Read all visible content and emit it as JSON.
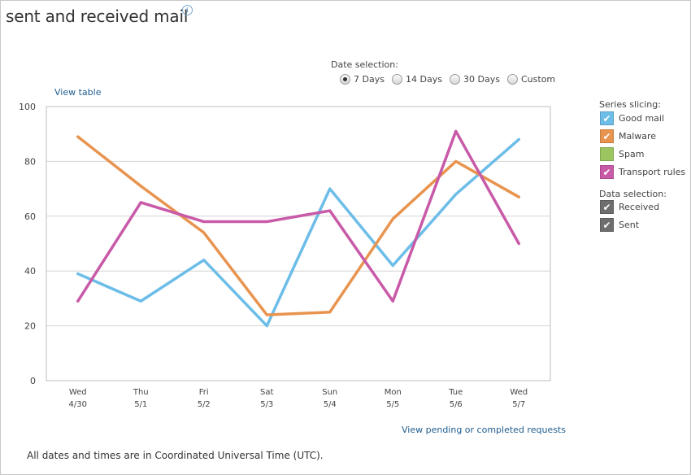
{
  "page": {
    "title": "sent and received mail",
    "info_icon": "info-icon",
    "view_table": "View table",
    "view_pending": "View pending or completed requests",
    "footer": "All dates and times are in Coordinated Universal Time (UTC)."
  },
  "date_selection": {
    "label": "Date selection:",
    "options": [
      "7 Days",
      "14 Days",
      "30 Days",
      "Custom"
    ],
    "selected": "7 Days"
  },
  "legend": {
    "series_label": "Series slicing:",
    "series": [
      {
        "label": "Good mail",
        "color": "#6cbde8",
        "checked": true
      },
      {
        "label": "Malware",
        "color": "#e8944f",
        "checked": true
      },
      {
        "label": "Spam",
        "color": "#9cc560",
        "checked": false
      },
      {
        "label": "Transport rules",
        "color": "#c85aa8",
        "checked": true
      }
    ],
    "data_label": "Data selection:",
    "data": [
      {
        "label": "Received",
        "color": "#6e6e6e",
        "checked": true
      },
      {
        "label": "Sent",
        "color": "#6e6e6e",
        "checked": true
      }
    ]
  },
  "chart_data": {
    "type": "line",
    "categories": [
      "Wed\n4/30",
      "Thu\n5/1",
      "Fri\n5/2",
      "Sat\n5/3",
      "Sun\n5/4",
      "Mon\n5/5",
      "Tue\n5/6",
      "Wed\n5/7"
    ],
    "category_lines": [
      [
        "Wed",
        "4/30"
      ],
      [
        "Thu",
        "5/1"
      ],
      [
        "Fri",
        "5/2"
      ],
      [
        "Sat",
        "5/3"
      ],
      [
        "Sun",
        "5/4"
      ],
      [
        "Mon",
        "5/5"
      ],
      [
        "Tue",
        "5/6"
      ],
      [
        "Wed",
        "5/7"
      ]
    ],
    "ylim": [
      0,
      100
    ],
    "yticks": [
      0,
      20,
      40,
      60,
      80,
      100
    ],
    "grid": true,
    "series": [
      {
        "name": "Good mail",
        "color": "#6cbde8",
        "values": [
          39,
          29,
          44,
          20,
          70,
          42,
          68,
          88
        ]
      },
      {
        "name": "Malware",
        "color": "#e8944f",
        "values": [
          89,
          71,
          54,
          24,
          25,
          59,
          80,
          67
        ]
      },
      {
        "name": "Transport rules",
        "color": "#c85aa8",
        "values": [
          29,
          65,
          58,
          58,
          62,
          29,
          91,
          50
        ]
      }
    ]
  }
}
